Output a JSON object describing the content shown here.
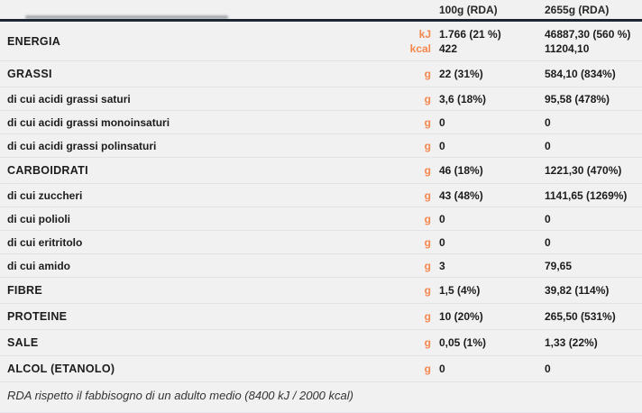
{
  "colors": {
    "accent_orange": "#f6874d",
    "heading_rule": "#1d2733",
    "text": "#1c1c1c",
    "background": "#f1f1f2",
    "separator": "#e2e2e8"
  },
  "table": {
    "columns": [
      "100g (RDA)",
      "2655g (RDA)"
    ],
    "rows": [
      {
        "label": "ENERGIA",
        "major": true,
        "units": [
          "kJ",
          "kcal"
        ],
        "col1": [
          "1.766 (21 %)",
          "422"
        ],
        "col2": [
          "46887,30 (560 %)",
          "11204,10"
        ]
      },
      {
        "label": "GRASSI",
        "major": true,
        "units": [
          "g"
        ],
        "col1": [
          "22 (31%)"
        ],
        "col2": [
          "584,10 (834%)"
        ]
      },
      {
        "label": "di cui acidi grassi saturi",
        "major": false,
        "units": [
          "g"
        ],
        "col1": [
          "3,6 (18%)"
        ],
        "col2": [
          "95,58 (478%)"
        ]
      },
      {
        "label": "di cui acidi grassi monoinsaturi",
        "major": false,
        "units": [
          "g"
        ],
        "col1": [
          "0"
        ],
        "col2": [
          "0"
        ]
      },
      {
        "label": "di cui acidi grassi polinsaturi",
        "major": false,
        "units": [
          "g"
        ],
        "col1": [
          "0"
        ],
        "col2": [
          "0"
        ]
      },
      {
        "label": "CARBOIDRATI",
        "major": true,
        "units": [
          "g"
        ],
        "col1": [
          "46 (18%)"
        ],
        "col2": [
          "1221,30 (470%)"
        ]
      },
      {
        "label": "di cui zuccheri",
        "major": false,
        "units": [
          "g"
        ],
        "col1": [
          "43 (48%)"
        ],
        "col2": [
          "1141,65 (1269%)"
        ]
      },
      {
        "label": "di cui polioli",
        "major": false,
        "units": [
          "g"
        ],
        "col1": [
          "0"
        ],
        "col2": [
          "0"
        ]
      },
      {
        "label": "di cui eritritolo",
        "major": false,
        "units": [
          "g"
        ],
        "col1": [
          "0"
        ],
        "col2": [
          "0"
        ]
      },
      {
        "label": "di cui amido",
        "major": false,
        "units": [
          "g"
        ],
        "col1": [
          "3"
        ],
        "col2": [
          "79,65"
        ]
      },
      {
        "label": "FIBRE",
        "major": true,
        "units": [
          "g"
        ],
        "col1": [
          "1,5 (4%)"
        ],
        "col2": [
          "39,82 (114%)"
        ]
      },
      {
        "label": "PROTEINE",
        "major": true,
        "units": [
          "g"
        ],
        "col1": [
          "10 (20%)"
        ],
        "col2": [
          "265,50 (531%)"
        ]
      },
      {
        "label": "SALE",
        "major": true,
        "units": [
          "g"
        ],
        "col1": [
          "0,05 (1%)"
        ],
        "col2": [
          "1,33 (22%)"
        ]
      },
      {
        "label": "ALCOL (ETANOLO)",
        "major": true,
        "units": [
          "g"
        ],
        "col1": [
          "0"
        ],
        "col2": [
          "0"
        ]
      }
    ],
    "footnote": "RDA rispetto il fabbisogno di un adulto medio (8400 kJ / 2000 kcal)"
  }
}
